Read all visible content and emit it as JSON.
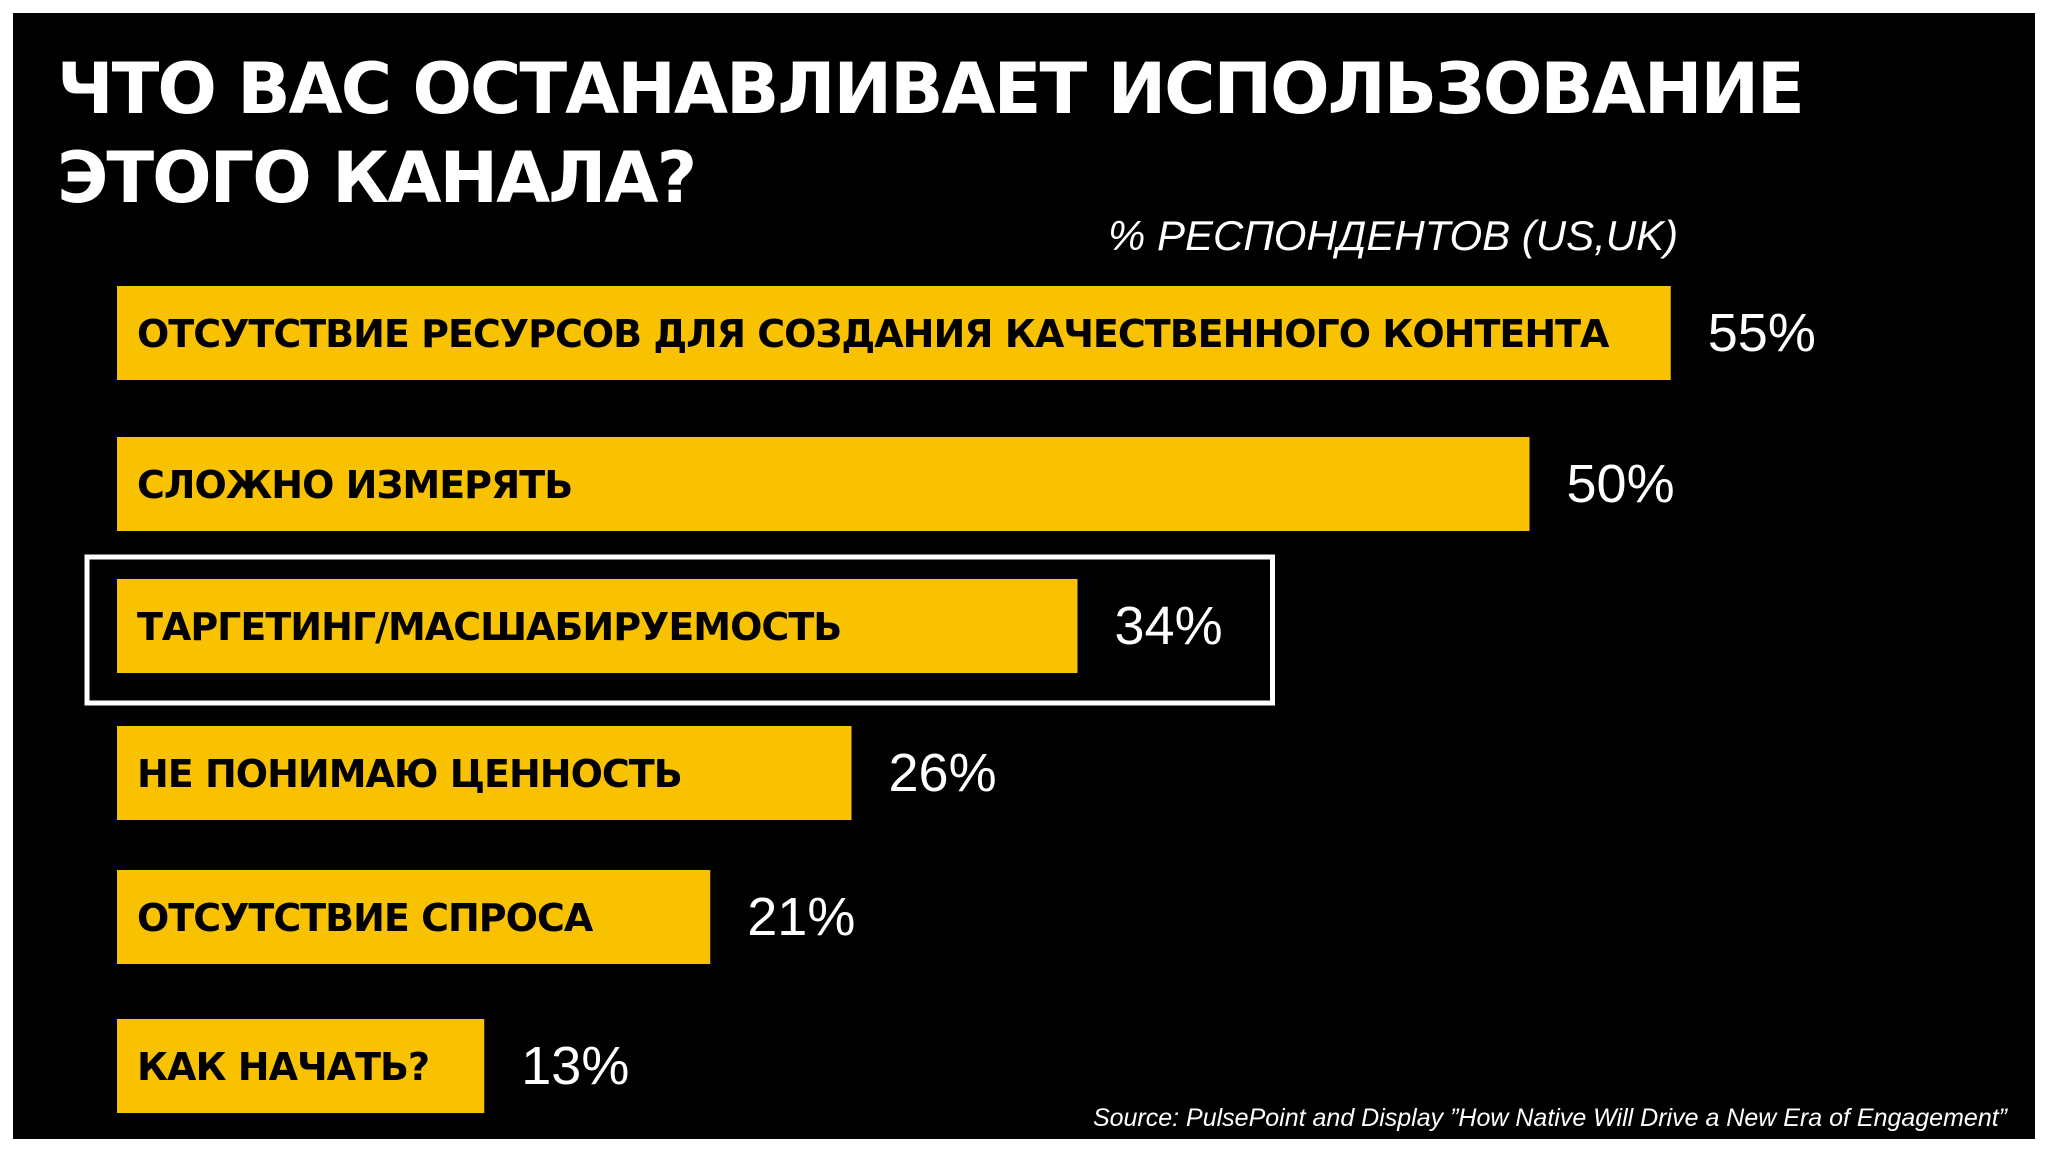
{
  "chart_data": {
    "type": "bar",
    "orientation": "horizontal",
    "title": "ЧТО ВАС ОСТАНАВЛИВАЕТ ИСПОЛЬЗОВАНИЕ ЭТОГО КАНАЛА?",
    "subtitle": "% РЕСПОНДЕНТОВ (US,UK)",
    "categories": [
      "ОТСУТСТВИЕ РЕСУРСОВ ДЛЯ СОЗДАНИЯ КАЧЕСТВЕННОГО КОНТЕНТА",
      "СЛОЖНО ИЗМЕРЯТЬ",
      "ТАРГЕТИНГ/МАСШАБИРУЕМОСТЬ",
      "НЕ ПОНИМАЮ ЦЕННОСТЬ",
      "ОТСУТСТВИЕ СПРОСА",
      "КАК НАЧАТЬ?"
    ],
    "values": [
      55,
      50,
      34,
      26,
      21,
      13
    ],
    "value_labels": [
      "55%",
      "50%",
      "34%",
      "26%",
      "21%",
      "13%"
    ],
    "highlighted_category": "ТАРГЕТИНГ/МАСШАБИРУЕМОСТЬ",
    "xlabel": "",
    "ylabel": "",
    "grid": false,
    "legend": "none",
    "colors": {
      "background": "#000000",
      "bar": "#f9c200",
      "bar_text": "#000000",
      "text": "#ffffff",
      "highlight_border": "#ffffff"
    },
    "source": "Source: PulsePoint and Display ”How Native Will Drive a New Era of Engagement”"
  }
}
